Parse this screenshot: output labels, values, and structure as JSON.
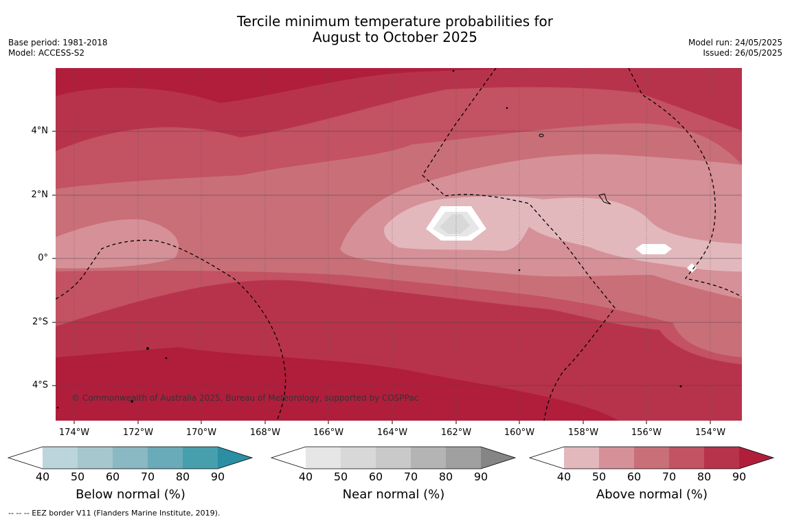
{
  "title": {
    "line1": "Tercile minimum temperature probabilities for",
    "line2": "August to October 2025"
  },
  "meta_left": {
    "base_period": "Base period: 1981-2018",
    "model": "Model: ACCESS-S2"
  },
  "meta_right": {
    "model_run": "Model run: 24/05/2025",
    "issued": "Issued: 26/05/2025"
  },
  "map": {
    "lon_range": [
      "174.6°W",
      "152.9°W"
    ],
    "lat_range": [
      "5.2°S",
      "5.9°N"
    ],
    "lat_labels": [
      "4°N",
      "2°N",
      "0°",
      "2°S",
      "4°S"
    ],
    "lon_labels": [
      "174°W",
      "172°W",
      "170°W",
      "168°W",
      "166°W",
      "164°W",
      "162°W",
      "160°W",
      "158°W",
      "156°W",
      "154°W"
    ],
    "copyright": "© Commonwealth of Australia 2025, Bureau of Meteorology, supported by COSPPac"
  },
  "colorbars": [
    {
      "title": "Below normal (%)",
      "ticks": [
        "40",
        "50",
        "60",
        "70",
        "80",
        "90"
      ],
      "colors": [
        "#ffffff",
        "#bcd5dc",
        "#a6c7ce",
        "#8ab8c3",
        "#6aabb9",
        "#479fae",
        "#2b8ea3"
      ]
    },
    {
      "title": "Near normal (%)",
      "ticks": [
        "40",
        "50",
        "60",
        "70",
        "80",
        "90"
      ],
      "colors": [
        "#ffffff",
        "#e6e6e6",
        "#d8d8d8",
        "#c9c9c9",
        "#b4b4b4",
        "#a0a0a0",
        "#858585"
      ]
    },
    {
      "title": "Above normal (%)",
      "ticks": [
        "40",
        "50",
        "60",
        "70",
        "80",
        "90"
      ],
      "colors": [
        "#ffffff",
        "#e2b8bd",
        "#d69098",
        "#c96f78",
        "#c35262",
        "#b7334b",
        "#b01e3c"
      ]
    }
  ],
  "footnote": "--  --  -- EEZ border V11 (Flanders Marine Institute, 2019)."
}
